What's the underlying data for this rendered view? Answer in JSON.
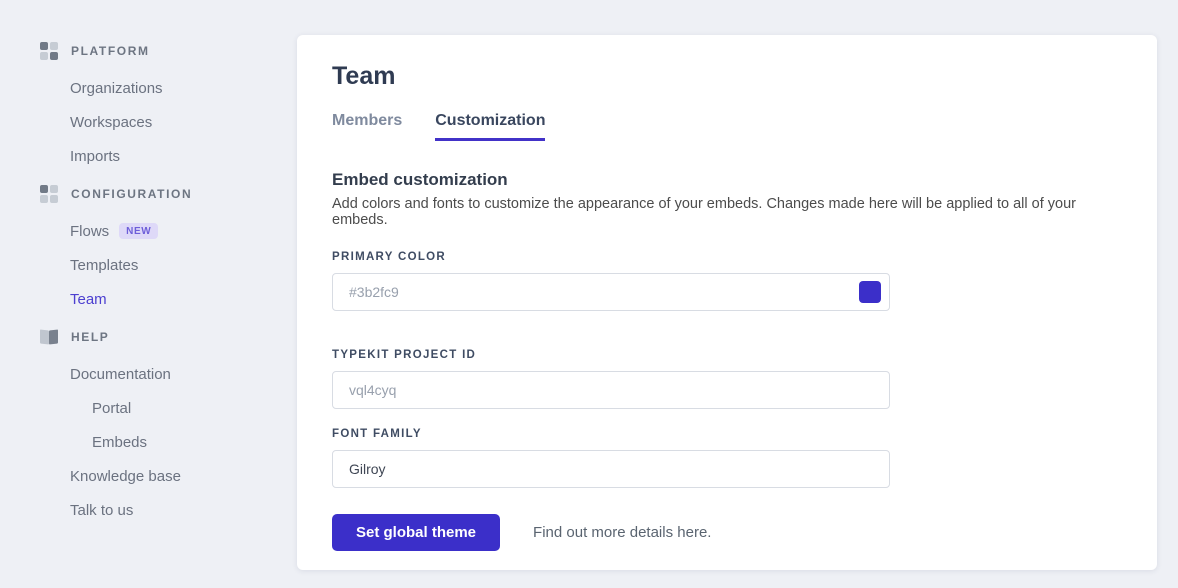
{
  "colors": {
    "accent": "#3b2fc9",
    "page_bg": "#eef0f5",
    "active_sidebar_link": "#4c3fd0",
    "tab_underline": "#4232c8"
  },
  "sidebar": {
    "sections": [
      {
        "label": "PLATFORM",
        "icon": "platform-grid-icon",
        "items": [
          {
            "label": "Organizations"
          },
          {
            "label": "Workspaces"
          },
          {
            "label": "Imports"
          }
        ]
      },
      {
        "label": "CONFIGURATION",
        "icon": "configuration-grid-icon",
        "items": [
          {
            "label": "Flows",
            "badge": "NEW"
          },
          {
            "label": "Templates"
          },
          {
            "label": "Team",
            "active": true
          }
        ]
      },
      {
        "label": "HELP",
        "icon": "help-book-icon",
        "items": [
          {
            "label": "Documentation"
          },
          {
            "label": "Portal",
            "indent": true
          },
          {
            "label": "Embeds",
            "indent": true
          },
          {
            "label": "Knowledge base"
          },
          {
            "label": "Talk to us"
          }
        ]
      }
    ]
  },
  "main": {
    "title": "Team",
    "tabs": [
      {
        "label": "Members",
        "active": false
      },
      {
        "label": "Customization",
        "active": true
      }
    ],
    "embed_section": {
      "heading": "Embed customization",
      "description": "Add colors and fonts to customize the appearance of your embeds. Changes made here will be applied to all of your embeds."
    },
    "fields": {
      "primary_color": {
        "label": "PRIMARY COLOR",
        "placeholder": "#3b2fc9",
        "swatch_color": "#3b2fc9"
      },
      "typekit_project_id": {
        "label": "TYPEKIT PROJECT ID",
        "placeholder": "vql4cyq"
      },
      "font_family": {
        "label": "FONT FAMILY",
        "value": "Gilroy"
      }
    },
    "actions": {
      "set_global_theme": "Set global theme",
      "more_details_text": "Find out more details ",
      "more_details_link": "here."
    }
  }
}
